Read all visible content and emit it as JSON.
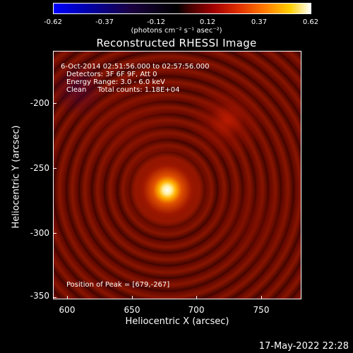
{
  "chart_data": {
    "type": "heatmap",
    "title": "Reconstructed RHESSI Image",
    "xlabel": "Heliocentric X (arcsec)",
    "ylabel": "Heliocentric Y (arcsec)",
    "xlim": [
      590,
      782
    ],
    "ylim": [
      -352,
      -160
    ],
    "x_ticks": [
      "600",
      "650",
      "700",
      "750"
    ],
    "y_ticks": [
      "-200",
      "-250",
      "-300",
      "-350"
    ],
    "colorbar": {
      "ticks": [
        "-0.62",
        "-0.37",
        "-0.12",
        "0.12",
        "0.37",
        "0.62"
      ],
      "unit": "(photons cm⁻² s⁻¹ asec⁻²)",
      "range": [
        -0.62,
        0.62
      ]
    },
    "peak": {
      "x": 679,
      "y": -267
    },
    "secondary_source": {
      "x": 722,
      "y": -215
    },
    "annotations": {
      "time": "6-Oct-2014 02:51:56.000 to 02:57:56.000",
      "detectors": "Detectors: 3F 6F 9F, Att 0",
      "energy": "Energy Range: 3.0 - 6.0 keV",
      "clean": "Clean     Total counts: 1.18E+04",
      "peak_text": "Position of Peak = [679,-267]"
    }
  },
  "timestamp": "17-May-2022 22:28",
  "colors": {
    "background": "#000000",
    "text": "#ffffff",
    "peak": "#ffffff",
    "plasma": "#8a1500"
  }
}
